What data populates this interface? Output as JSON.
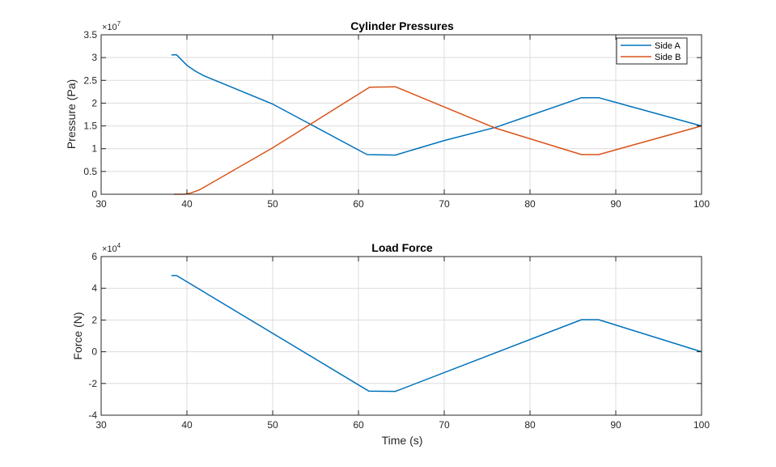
{
  "chart_data": [
    {
      "type": "line",
      "title": "Cylinder Pressures",
      "xlabel": "",
      "ylabel": "Pressure (Pa)",
      "y_exponent": "×10",
      "y_exponent_power": "7",
      "xlim": [
        30,
        100
      ],
      "ylim": [
        0,
        3.5
      ],
      "xticks": [
        30,
        40,
        50,
        60,
        70,
        80,
        90,
        100
      ],
      "yticks": [
        0,
        0.5,
        1,
        1.5,
        2,
        2.5,
        3,
        3.5
      ],
      "xtick_labels": [
        "30",
        "40",
        "50",
        "60",
        "70",
        "80",
        "90",
        "100"
      ],
      "ytick_labels": [
        "0",
        "0.5",
        "1",
        "1.5",
        "2",
        "2.5",
        "3",
        "3.5"
      ],
      "grid": true,
      "legend": "top-right",
      "series": [
        {
          "name": "Side A",
          "color": "#0072BD",
          "x": [
            38.2,
            38.8,
            40,
            41,
            42,
            50,
            61,
            64.3,
            70,
            76,
            86,
            88,
            100
          ],
          "y": [
            3.06,
            3.06,
            2.83,
            2.7,
            2.6,
            1.98,
            0.87,
            0.86,
            1.18,
            1.47,
            2.12,
            2.12,
            1.5
          ]
        },
        {
          "name": "Side B",
          "color": "#D95319",
          "x": [
            38.5,
            39.7,
            40.5,
            41.5,
            50,
            61.3,
            64.3,
            76,
            86,
            88,
            100
          ],
          "y": [
            0,
            0,
            0.03,
            0.1,
            1.02,
            2.35,
            2.36,
            1.45,
            0.87,
            0.87,
            1.5
          ]
        }
      ]
    },
    {
      "type": "line",
      "title": "Load Force",
      "xlabel": "Time (s)",
      "ylabel": "Force (N)",
      "y_exponent": "×10",
      "y_exponent_power": "4",
      "xlim": [
        30,
        100
      ],
      "ylim": [
        -4,
        6
      ],
      "xticks": [
        30,
        40,
        50,
        60,
        70,
        80,
        90,
        100
      ],
      "yticks": [
        -4,
        -2,
        0,
        2,
        4,
        6
      ],
      "xtick_labels": [
        "30",
        "40",
        "50",
        "60",
        "70",
        "80",
        "90",
        "100"
      ],
      "ytick_labels": [
        "-4",
        "-2",
        "0",
        "2",
        "4",
        "6"
      ],
      "grid": true,
      "series": [
        {
          "color": "#0072BD",
          "x": [
            38.2,
            38.8,
            61.2,
            64.3,
            86,
            88,
            100
          ],
          "y": [
            4.8,
            4.8,
            -2.48,
            -2.5,
            2.02,
            2.02,
            0.0
          ]
        }
      ]
    }
  ]
}
